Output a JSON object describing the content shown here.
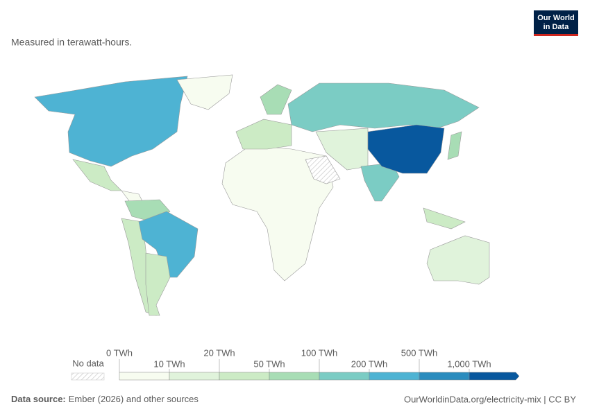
{
  "header": {
    "subtitle": "Measured in terawatt-hours.",
    "logo": [
      "Our World",
      "in Data"
    ]
  },
  "legend": {
    "no_data": "No data",
    "labels": [
      "0 TWh",
      "10 TWh",
      "20 TWh",
      "50 TWh",
      "100 TWh",
      "200 TWh",
      "500 TWh",
      "1,000 TWh"
    ],
    "colors": [
      "#f7fcf0",
      "#e0f3db",
      "#ccebc5",
      "#a8ddb5",
      "#7bccc4",
      "#4eb3d3",
      "#2b8cbe",
      "#08589e"
    ]
  },
  "footer": {
    "source_label": "Data source:",
    "source": "Ember (2026) and other sources",
    "url": "OurWorldinData.org/electricity-mix | CC BY"
  }
}
